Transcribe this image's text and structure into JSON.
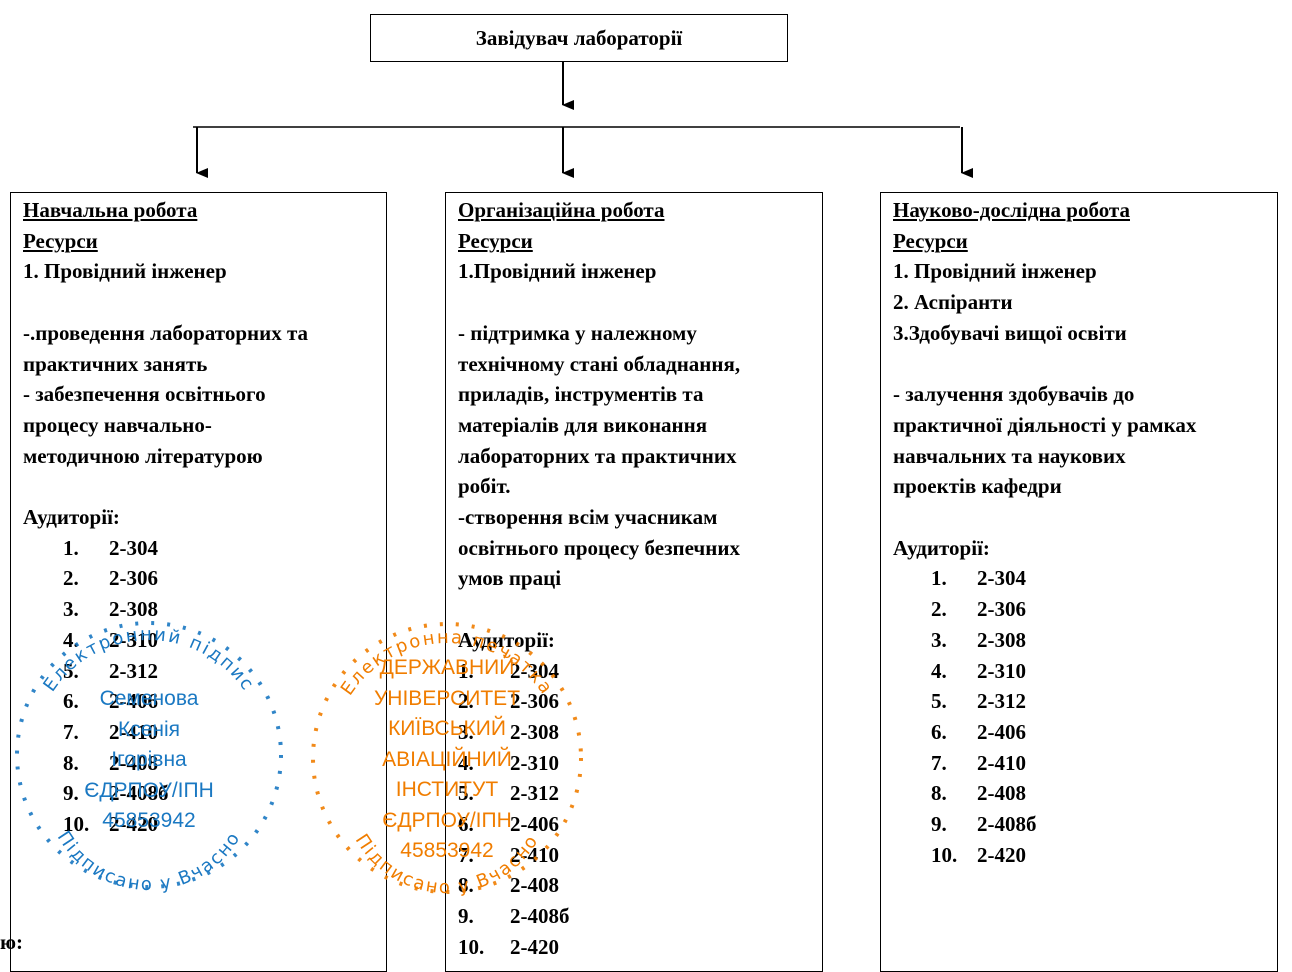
{
  "head": {
    "title": "Завідувач лабораторії"
  },
  "columns": [
    {
      "title": "Навчальна робота",
      "resources_label": "Ресурси",
      "resources": [
        "1. Провідний інженер"
      ],
      "duties": [
        "-.проведення лабораторних та",
        "практичних занять",
        "- забезпечення освітнього",
        "процесу навчально-",
        "методичною літературою"
      ],
      "rooms_label": "Аудиторії:",
      "rooms": [
        {
          "n": "1.",
          "v": "2-304"
        },
        {
          "n": "2.",
          "v": "2-306"
        },
        {
          "n": "3.",
          "v": "2-308"
        },
        {
          "n": "4.",
          "v": "2-310"
        },
        {
          "n": "5.",
          "v": "2-312"
        },
        {
          "n": "6.",
          "v": "2-406"
        },
        {
          "n": "7.",
          "v": "2-410"
        },
        {
          "n": "8.",
          "v": "2-408"
        },
        {
          "n": "9.",
          "v": "2-408б"
        },
        {
          "n": "10.",
          "v": "2-420"
        }
      ]
    },
    {
      "title": "Організаційна робота",
      "resources_label": "Ресурси",
      "resources": [
        "1.Провідний інженер"
      ],
      "duties": [
        "- підтримка у належному",
        "технічному стані обладнання,",
        "приладів, інструментів та",
        "матеріалів для виконання",
        "лабораторних та практичних",
        "робіт.",
        "-створення всім учасникам",
        "освітнього процесу безпечних",
        "умов праці"
      ],
      "rooms_label": "Аудиторії:",
      "rooms": [
        {
          "n": "1.",
          "v": "2-304"
        },
        {
          "n": "2.",
          "v": "2-306"
        },
        {
          "n": "3.",
          "v": "2-308"
        },
        {
          "n": "4.",
          "v": "2-310"
        },
        {
          "n": "5.",
          "v": "2-312"
        },
        {
          "n": "6.",
          "v": "2-406"
        },
        {
          "n": "7.",
          "v": "2-410"
        },
        {
          "n": "8.",
          "v": "2-408"
        },
        {
          "n": "9.",
          "v": "2-408б"
        },
        {
          "n": "10.",
          "v": "2-420"
        }
      ]
    },
    {
      "title": "Науково-дослідна робота",
      "resources_label": "Ресурси",
      "resources": [
        "1. Провідний інженер",
        "2. Аспіранти",
        "3.Здобувачі вищої освіти"
      ],
      "duties": [
        "- залучення здобувачів до",
        "практичної діяльності у рамках",
        "навчальних та наукових",
        "проектів кафедри"
      ],
      "rooms_label": "Аудиторії:",
      "rooms": [
        {
          "n": "1.",
          "v": "2-304"
        },
        {
          "n": "2.",
          "v": "2-306"
        },
        {
          "n": "3.",
          "v": "2-308"
        },
        {
          "n": "4.",
          "v": "2-310"
        },
        {
          "n": "5.",
          "v": "2-312"
        },
        {
          "n": "6.",
          "v": "2-406"
        },
        {
          "n": "7.",
          "v": "2-410"
        },
        {
          "n": "8.",
          "v": "2-408"
        },
        {
          "n": "9.",
          "v": "2-408б"
        },
        {
          "n": "10.",
          "v": "2-420"
        }
      ]
    }
  ],
  "stamps": [
    {
      "ring_top": "Електронний підпис",
      "ring_bottom": "Підписано у Вчасно",
      "lines": [
        "Семенова",
        "Ксенія",
        "Ігорівна",
        "ЄДРПОУ/ІПН",
        "45853942"
      ],
      "color": "#1a78c2"
    },
    {
      "ring_top": "Електронна печатка",
      "ring_bottom": "Підписано у Вчасно",
      "lines": [
        "ДЕРЖАВНИЙ",
        "УНІВЕРСИТЕТ",
        "КИЇВСЬКИЙ",
        "АВІАЦІЙНИЙ",
        "ІНСТИТУТ",
        "ЄДРПОУ/ІПН",
        "45853942"
      ],
      "color": "#f07d00"
    }
  ],
  "corner_text": "ю:"
}
